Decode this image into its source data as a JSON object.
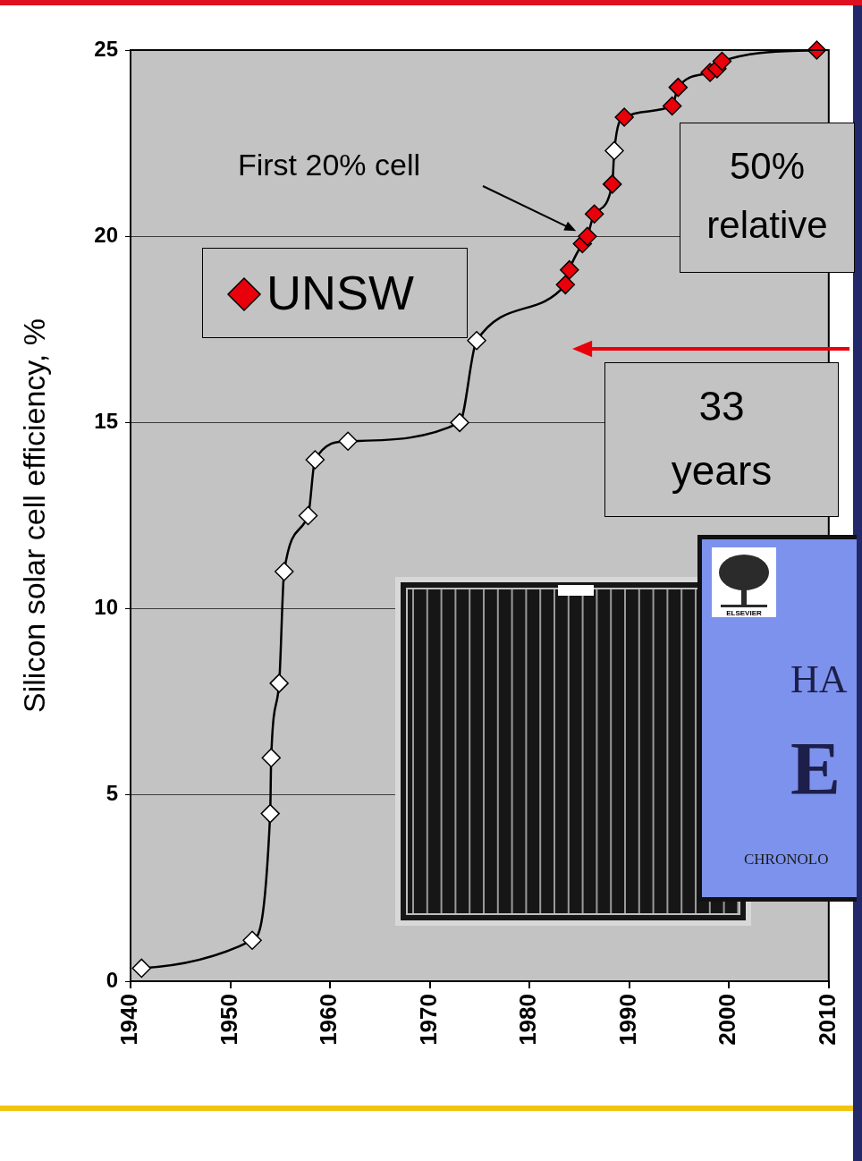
{
  "chart_data": {
    "type": "line",
    "y_label": "Silicon solar cell efficiency, %",
    "x": [
      1941.1,
      1952.2,
      1954.0,
      1954.1,
      1954.9,
      1955.4,
      1957.8,
      1958.5,
      1961.8,
      1973.0,
      1974.7,
      1983.6,
      1984.0,
      1985.3,
      1985.8,
      1986.5,
      1988.3,
      1988.5,
      1989.5,
      1994.3,
      1994.9,
      1998.1,
      1998.8,
      1999.3,
      2008.8
    ],
    "series": [
      {
        "values": [
          0.35,
          1.1,
          4.5,
          6,
          8,
          11,
          12.5,
          14,
          14.5,
          15,
          17.2,
          18.7,
          19.1,
          19.8,
          20,
          20.6,
          21.4,
          22.3,
          23.2,
          23.5,
          24,
          24.4,
          24.5,
          24.7,
          25
        ],
        "color": "#000000",
        "colors": [
          "#ffffff",
          "#ffffff",
          "#ffffff",
          "#ffffff",
          "#ffffff",
          "#ffffff",
          "#ffffff",
          "#ffffff",
          "#ffffff",
          "#ffffff",
          "#ffffff",
          "#e8000b",
          "#e8000b",
          "#e8000b",
          "#e8000b",
          "#e8000b",
          "#e8000b",
          "#ffffff",
          "#e8000b",
          "#e8000b",
          "#e8000b",
          "#e8000b",
          "#e8000b",
          "#e8000b",
          "#e8000b"
        ],
        "marker": "diamond",
        "line_style": "solid"
      }
    ],
    "xlim": [
      1940,
      2010
    ],
    "xticks": [
      1940,
      1950,
      1960,
      1970,
      1980,
      1990,
      2000,
      2010
    ],
    "ylim": [
      0,
      25
    ],
    "yticks": [
      0,
      5,
      10,
      15,
      20,
      25
    ],
    "grid": true,
    "annotations": [
      {
        "text": "First 20% cell"
      },
      {
        "text": "UNSW",
        "marker": "diamond",
        "color": "#e8000b"
      },
      {
        "text": "50% relative"
      },
      {
        "text": "33 years"
      }
    ],
    "book_cover": {
      "publisher": "ELSEVIER",
      "title": [
        "HA",
        "E"
      ],
      "subtitle": "CHRONOLO"
    }
  }
}
